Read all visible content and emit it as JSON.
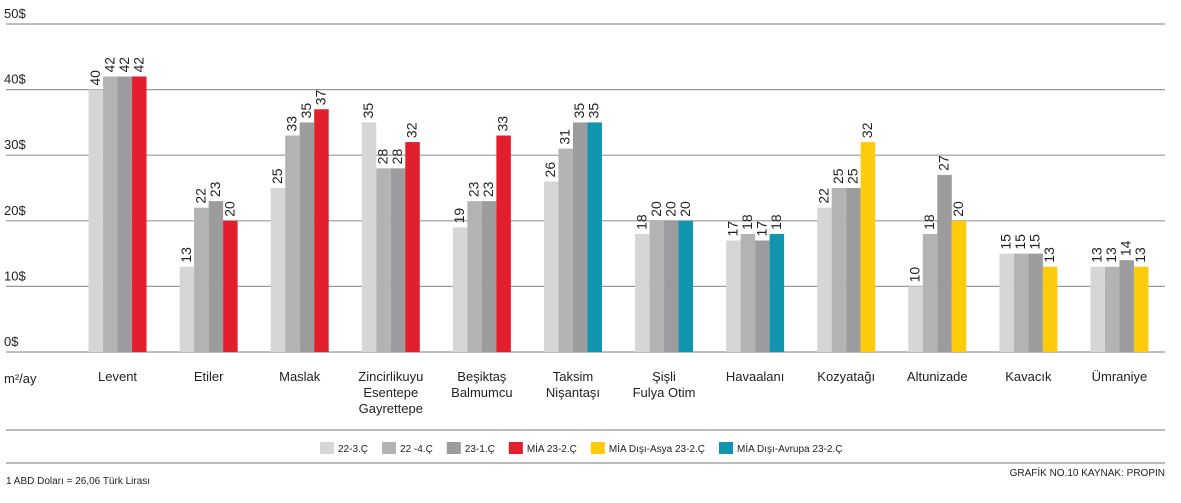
{
  "chart_data": {
    "type": "bar",
    "categories": [
      "Levent",
      "Etiler",
      "Maslak",
      "Zincirlikuyu\nEsentepe\nGayrettepe",
      "Beşiktaş\nBalmumcu",
      "Taksim\nNişantaşı",
      "Şişli\nFulya Otim",
      "Havaalanı",
      "Kozyatağı",
      "Altunizade",
      "Kavacık",
      "Ümraniye"
    ],
    "series": [
      {
        "name": "22-3.Ç",
        "color": "#d6d6d6",
        "values": [
          40,
          13,
          25,
          35,
          19,
          26,
          18,
          17,
          22,
          10,
          15,
          13
        ]
      },
      {
        "name": "22 -4.Ç",
        "color": "#b3b3b3",
        "values": [
          42,
          22,
          33,
          28,
          23,
          31,
          20,
          18,
          25,
          18,
          15,
          13
        ]
      },
      {
        "name": "23-1.Ç",
        "color": "#9c9c9e",
        "values": [
          42,
          23,
          35,
          28,
          23,
          35,
          20,
          17,
          25,
          27,
          15,
          14
        ]
      },
      {
        "name": "MİA 23-2.Ç",
        "color": "#e31e2d",
        "values": [
          42,
          20,
          37,
          32,
          33,
          null,
          null,
          null,
          null,
          null,
          null,
          null
        ]
      },
      {
        "name": "MİA Dışı-Asya 23-2.Ç",
        "color": "#fdcb0a",
        "values": [
          null,
          null,
          null,
          null,
          null,
          null,
          null,
          null,
          32,
          20,
          13,
          13
        ]
      },
      {
        "name": "MİA Dışı-Avrupa 23-2.Ç",
        "color": "#1195ae",
        "values": [
          null,
          null,
          null,
          null,
          null,
          35,
          20,
          18,
          null,
          null,
          null,
          null
        ]
      }
    ],
    "ylim": [
      0,
      50
    ],
    "yticks": [
      {
        "value": 0,
        "label": "0$"
      },
      {
        "value": 10,
        "label": "10$"
      },
      {
        "value": 20,
        "label": "20$"
      },
      {
        "value": 30,
        "label": "30$"
      },
      {
        "value": 40,
        "label": "40$"
      },
      {
        "value": 50,
        "label": "50$"
      }
    ],
    "y_unit": "m²/ay",
    "grid": true,
    "footnote": "1 ABD Doları = 26,06 Türk Lirası",
    "source": "GRAFİK NO.10 KAYNAK: PROPIN"
  }
}
